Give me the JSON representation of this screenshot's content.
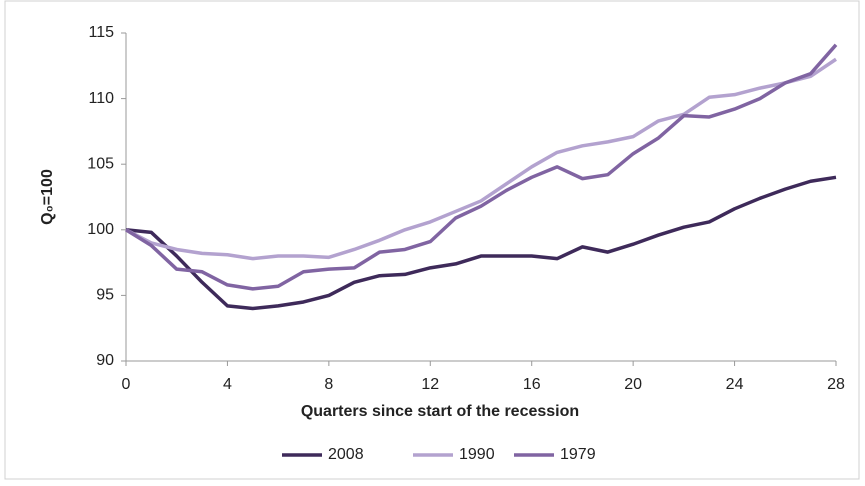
{
  "chart_data": {
    "type": "line",
    "x_label": "Quarters since start of the recession",
    "y_label": "Q₀=100",
    "x": [
      0,
      1,
      2,
      3,
      4,
      5,
      6,
      7,
      8,
      9,
      10,
      11,
      12,
      13,
      14,
      15,
      16,
      17,
      18,
      19,
      20,
      21,
      22,
      23,
      24,
      25,
      26,
      27,
      28
    ],
    "xlim": [
      0,
      28
    ],
    "xticks": [
      0,
      4,
      8,
      12,
      16,
      20,
      24,
      28
    ],
    "ylim": [
      90,
      115
    ],
    "yticks": [
      90,
      95,
      100,
      105,
      110,
      115
    ],
    "grid": false,
    "legend": "bottom",
    "series": [
      {
        "name": "2008",
        "color": "#3e2a5a",
        "values": [
          100,
          99.8,
          98,
          96,
          94.2,
          94,
          94.2,
          94.5,
          95,
          96,
          96.5,
          96.6,
          97.1,
          97.4,
          98,
          98,
          98,
          97.8,
          98.7,
          98.3,
          98.9,
          99.6,
          100.2,
          100.6,
          101.6,
          102.4,
          103.1,
          103.7,
          104
        ]
      },
      {
        "name": "1990",
        "color": "#b3a2cf",
        "values": [
          100,
          99,
          98.5,
          98.2,
          98.1,
          97.8,
          98,
          98,
          97.9,
          98.5,
          99.2,
          100,
          100.6,
          101.4,
          102.2,
          103.5,
          104.8,
          105.9,
          106.4,
          106.7,
          107.1,
          108.3,
          108.8,
          110.1,
          110.3,
          110.8,
          111.2,
          111.7,
          113
        ]
      },
      {
        "name": "1979",
        "color": "#8064a2",
        "values": [
          100,
          98.8,
          97,
          96.8,
          95.8,
          95.5,
          95.7,
          96.8,
          97,
          97.1,
          98.3,
          98.5,
          99.1,
          100.9,
          101.8,
          103,
          104,
          104.8,
          103.9,
          104.2,
          105.8,
          107,
          108.7,
          108.6,
          109.2,
          110,
          111.2,
          111.9,
          114.1
        ]
      }
    ]
  }
}
